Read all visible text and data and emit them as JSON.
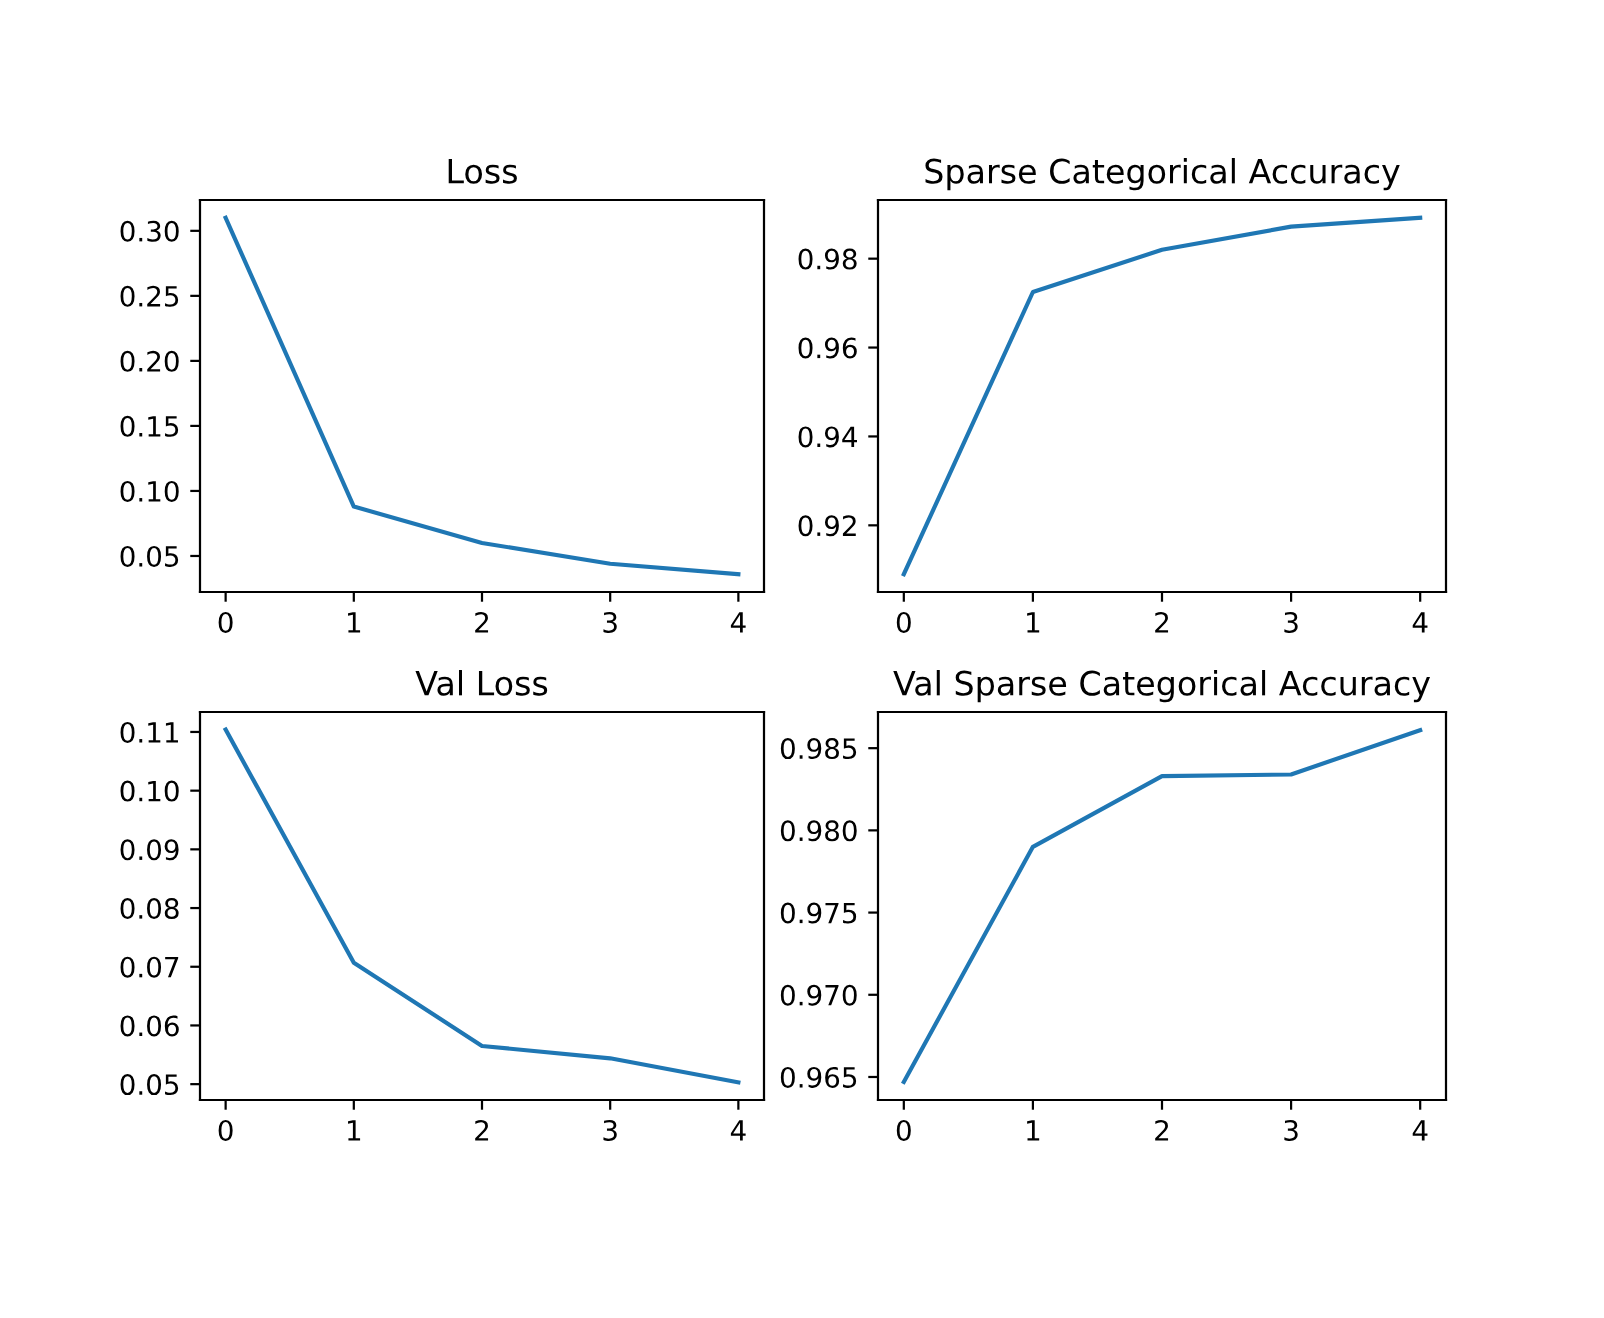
{
  "chart_data": [
    {
      "type": "line",
      "title": "Loss",
      "x": [
        0,
        1,
        2,
        3,
        4
      ],
      "values": [
        0.31,
        0.088,
        0.06,
        0.044,
        0.036
      ],
      "color": "#1f77b4",
      "xlim": [
        -0.2,
        4.2
      ],
      "xticks": [
        0,
        1,
        2,
        3,
        4
      ],
      "ylim": [
        0.0223,
        0.3237
      ],
      "yticks": [
        {
          "value": 0.05,
          "label": "0.05"
        },
        {
          "value": 0.1,
          "label": "0.10"
        },
        {
          "value": 0.15,
          "label": "0.15"
        },
        {
          "value": 0.2,
          "label": "0.20"
        },
        {
          "value": 0.25,
          "label": "0.25"
        },
        {
          "value": 0.3,
          "label": "0.30"
        }
      ]
    },
    {
      "type": "line",
      "title": "Sparse Categorical Accuracy",
      "x": [
        0,
        1,
        2,
        3,
        4
      ],
      "values": [
        0.909,
        0.9725,
        0.982,
        0.9872,
        0.9892
      ],
      "color": "#1f77b4",
      "xlim": [
        -0.2,
        4.2
      ],
      "xticks": [
        0,
        1,
        2,
        3,
        4
      ],
      "ylim": [
        0.905,
        0.9932
      ],
      "yticks": [
        0.92,
        0.94,
        0.96,
        0.98
      ]
    },
    {
      "type": "line",
      "title": "Val Loss",
      "x": [
        0,
        1,
        2,
        3,
        4
      ],
      "values": [
        0.1104,
        0.0707,
        0.0565,
        0.0544,
        0.0503
      ],
      "color": "#1f77b4",
      "xlim": [
        -0.2,
        4.2
      ],
      "xticks": [
        0,
        1,
        2,
        3,
        4
      ],
      "ylim": [
        0.0473,
        0.1134
      ],
      "yticks": [
        0.05,
        0.06,
        0.07,
        0.08,
        0.09,
        {
          "value": 0.1,
          "label": "0.10"
        },
        0.11
      ]
    },
    {
      "type": "line",
      "title": "Val Sparse Categorical Accuracy",
      "x": [
        0,
        1,
        2,
        3,
        4
      ],
      "values": [
        0.9647,
        0.979,
        0.9833,
        0.9834,
        0.9861
      ],
      "color": "#1f77b4",
      "xlim": [
        -0.2,
        4.2
      ],
      "xticks": [
        0,
        1,
        2,
        3,
        4
      ],
      "ylim": [
        0.9636,
        0.9872
      ],
      "yticks": [
        0.965,
        {
          "value": 0.97,
          "label": "0.970"
        },
        0.975,
        {
          "value": 0.98,
          "label": "0.980"
        },
        0.985
      ]
    }
  ]
}
